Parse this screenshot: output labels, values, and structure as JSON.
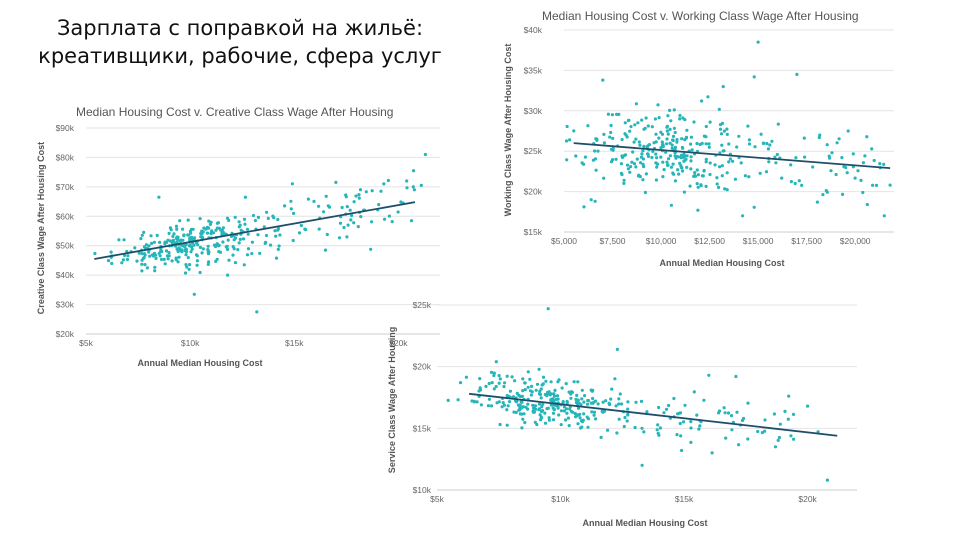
{
  "slide": {
    "title_line1": "Зарплата с поправкой на жильё:",
    "title_line2": "креативщики, рабочие, сфера услуг"
  },
  "colors": {
    "points": "#26b5b8",
    "trend": "#1f4e6b",
    "grid": "#e4e4e4"
  },
  "chart_data": [
    {
      "id": "creative",
      "type": "scatter",
      "title": "Median Housing Cost v. Creative Class Wage After Housing",
      "xlabel": "Annual Median Housing Cost",
      "ylabel": "Creative Class Wage After Housing Cost",
      "xlim": [
        5000,
        22000
      ],
      "ylim": [
        20000,
        90000
      ],
      "xticks": [
        5000,
        10000,
        15000,
        20000
      ],
      "xtick_labels": [
        "$5k",
        "$10k",
        "$15k",
        "$20k"
      ],
      "yticks": [
        20000,
        30000,
        40000,
        50000,
        60000,
        70000,
        80000,
        90000
      ],
      "ytick_labels": [
        "$20k",
        "$30k",
        "$40k",
        "$50k",
        "$60k",
        "$70k",
        "$80k",
        "$90k"
      ],
      "grid": true,
      "trend": {
        "x": [
          5400,
          20800
        ],
        "y": [
          45500,
          64800
        ]
      },
      "cloud": {
        "center_x": 9700,
        "center_y": 50000,
        "spread_x": 1700,
        "spread_y": 3500,
        "count": 230
      },
      "tail": {
        "x_from": 10500,
        "x_to": 20800,
        "spread_y": 5000,
        "count": 110
      },
      "points": [
        {
          "x": 21300,
          "y": 81000
        },
        {
          "x": 13200,
          "y": 27500
        },
        {
          "x": 10200,
          "y": 33500
        },
        {
          "x": 16500,
          "y": 48500
        },
        {
          "x": 20400,
          "y": 72000
        },
        {
          "x": 19300,
          "y": 71000
        },
        {
          "x": 17000,
          "y": 71500
        },
        {
          "x": 21100,
          "y": 70500
        },
        {
          "x": 8500,
          "y": 66500
        },
        {
          "x": 11800,
          "y": 40000
        },
        {
          "x": 12600,
          "y": 43500
        },
        {
          "x": 8300,
          "y": 41500
        },
        {
          "x": 17300,
          "y": 63000
        }
      ]
    },
    {
      "id": "working",
      "type": "scatter",
      "title": "Median Housing Cost v. Working Class Wage After Housing",
      "xlabel": "Annual Median Housing Cost",
      "ylabel": "Working Class Wage After Housing Cost",
      "xlim": [
        5000,
        22000
      ],
      "ylim": [
        15000,
        40000
      ],
      "xticks": [
        5000,
        7500,
        10000,
        12500,
        15000,
        17500,
        20000
      ],
      "xtick_labels": [
        "$5,000",
        "$7,500",
        "$10,000",
        "$12,500",
        "$15,000",
        "$17,500",
        "$20,000"
      ],
      "yticks": [
        15000,
        20000,
        25000,
        30000,
        35000,
        40000
      ],
      "ytick_labels": [
        "$15k",
        "$20k",
        "$25k",
        "$30k",
        "$35k",
        "$40k"
      ],
      "grid": true,
      "trend": {
        "x": [
          5500,
          21800
        ],
        "y": [
          26000,
          22900
        ]
      },
      "cloud": {
        "center_x": 9800,
        "center_y": 25300,
        "spread_x": 2100,
        "spread_y": 2600,
        "count": 250
      },
      "tail": {
        "x_from": 10500,
        "x_to": 21500,
        "spread_y": 2300,
        "count": 100
      },
      "points": [
        {
          "x": 15000,
          "y": 38500
        },
        {
          "x": 17000,
          "y": 34500
        },
        {
          "x": 14800,
          "y": 34200
        },
        {
          "x": 21500,
          "y": 17000
        },
        {
          "x": 11900,
          "y": 17700
        },
        {
          "x": 14200,
          "y": 17000
        },
        {
          "x": 6400,
          "y": 19000
        },
        {
          "x": 21800,
          "y": 20800
        },
        {
          "x": 20600,
          "y": 26800
        },
        {
          "x": 13200,
          "y": 33000
        },
        {
          "x": 7000,
          "y": 33800
        },
        {
          "x": 6600,
          "y": 18800
        }
      ]
    },
    {
      "id": "service",
      "type": "scatter",
      "title": "",
      "xlabel": "Annual Median Housing Cost",
      "ylabel": "Service Class Wage After Housing",
      "xlim": [
        5000,
        22000
      ],
      "ylim": [
        10000,
        25000
      ],
      "xticks": [
        5000,
        10000,
        15000,
        20000
      ],
      "xtick_labels": [
        "$5k",
        "$10k",
        "$15k",
        "$20k"
      ],
      "yticks": [
        10000,
        15000,
        20000,
        25000
      ],
      "ytick_labels": [
        "$10k",
        "$15k",
        "$20k",
        "$25k"
      ],
      "grid": true,
      "trend": {
        "x": [
          6300,
          21200
        ],
        "y": [
          17800,
          14400
        ]
      },
      "cloud": {
        "center_x": 9400,
        "center_y": 17100,
        "spread_x": 1500,
        "spread_y": 1000,
        "count": 260
      },
      "tail": {
        "x_from": 10500,
        "x_to": 20500,
        "spread_y": 1100,
        "count": 90
      },
      "points": [
        {
          "x": 9500,
          "y": 24700
        },
        {
          "x": 20800,
          "y": 10800
        },
        {
          "x": 12300,
          "y": 21400
        },
        {
          "x": 13300,
          "y": 12000
        },
        {
          "x": 16000,
          "y": 19300
        },
        {
          "x": 20000,
          "y": 16800
        },
        {
          "x": 17100,
          "y": 19200
        },
        {
          "x": 7400,
          "y": 20400
        },
        {
          "x": 18700,
          "y": 13500
        },
        {
          "x": 14900,
          "y": 13200
        }
      ]
    }
  ]
}
